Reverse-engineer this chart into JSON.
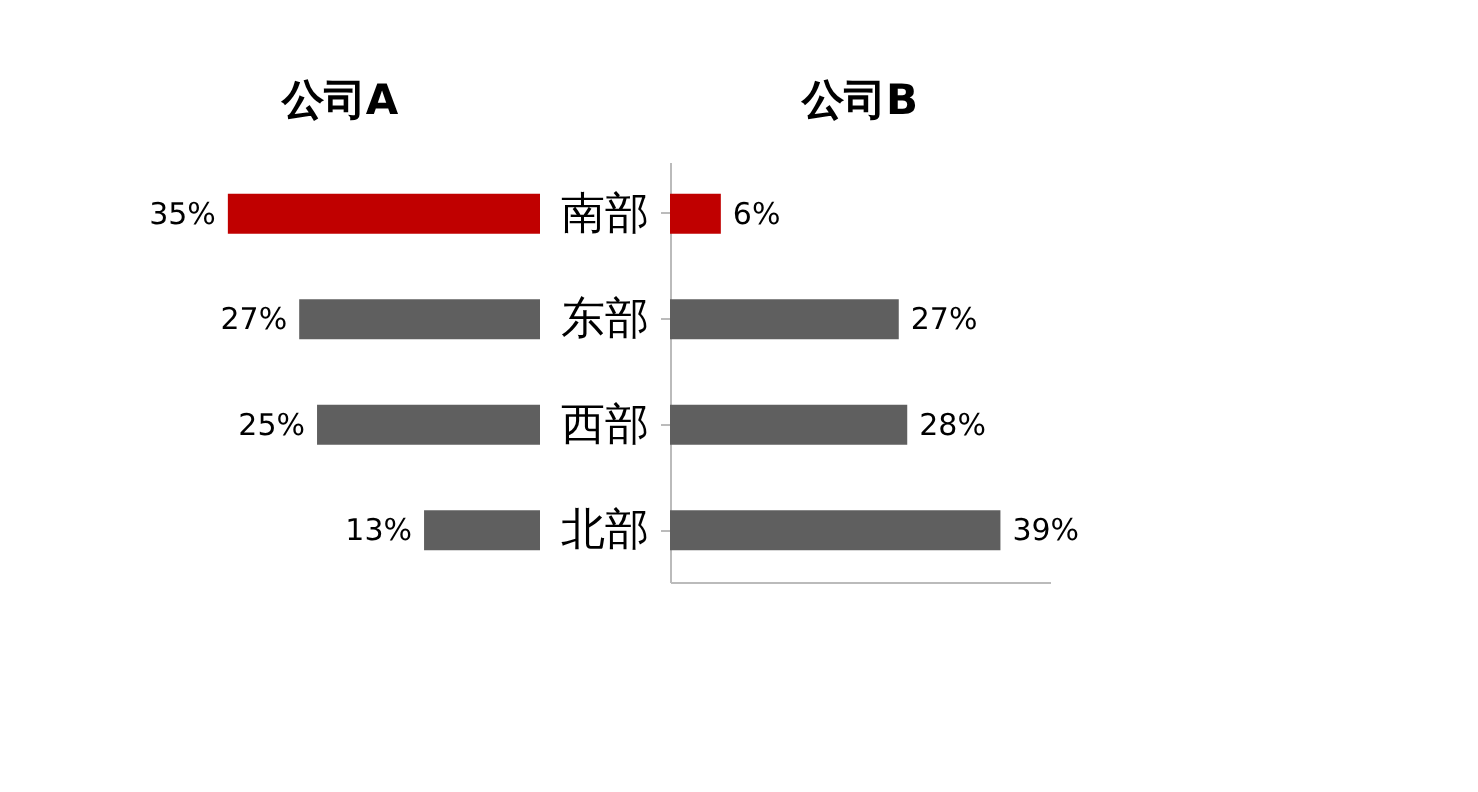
{
  "chart_data": [
    {
      "type": "bar",
      "orientation": "horizontal",
      "title": "公司A",
      "values": [
        35,
        27,
        25,
        13
      ],
      "value_labels": [
        "35%",
        "27%",
        "25%",
        "13%"
      ],
      "colors": [
        "#c00000",
        "#5f5f5f",
        "#5f5f5f",
        "#5f5f5f"
      ],
      "tick_labels": false
    },
    {
      "type": "bar",
      "orientation": "horizontal",
      "title": "公司B",
      "categories": [
        "南部",
        "东部",
        "西部",
        "北部"
      ],
      "values": [
        6,
        27,
        28,
        39
      ],
      "value_labels": [
        "6%",
        "27%",
        "28%",
        "39%"
      ],
      "colors": [
        "#c00000",
        "#5f5f5f",
        "#5f5f5f",
        "#5f5f5f"
      ],
      "tick_labels": "y"
    }
  ]
}
